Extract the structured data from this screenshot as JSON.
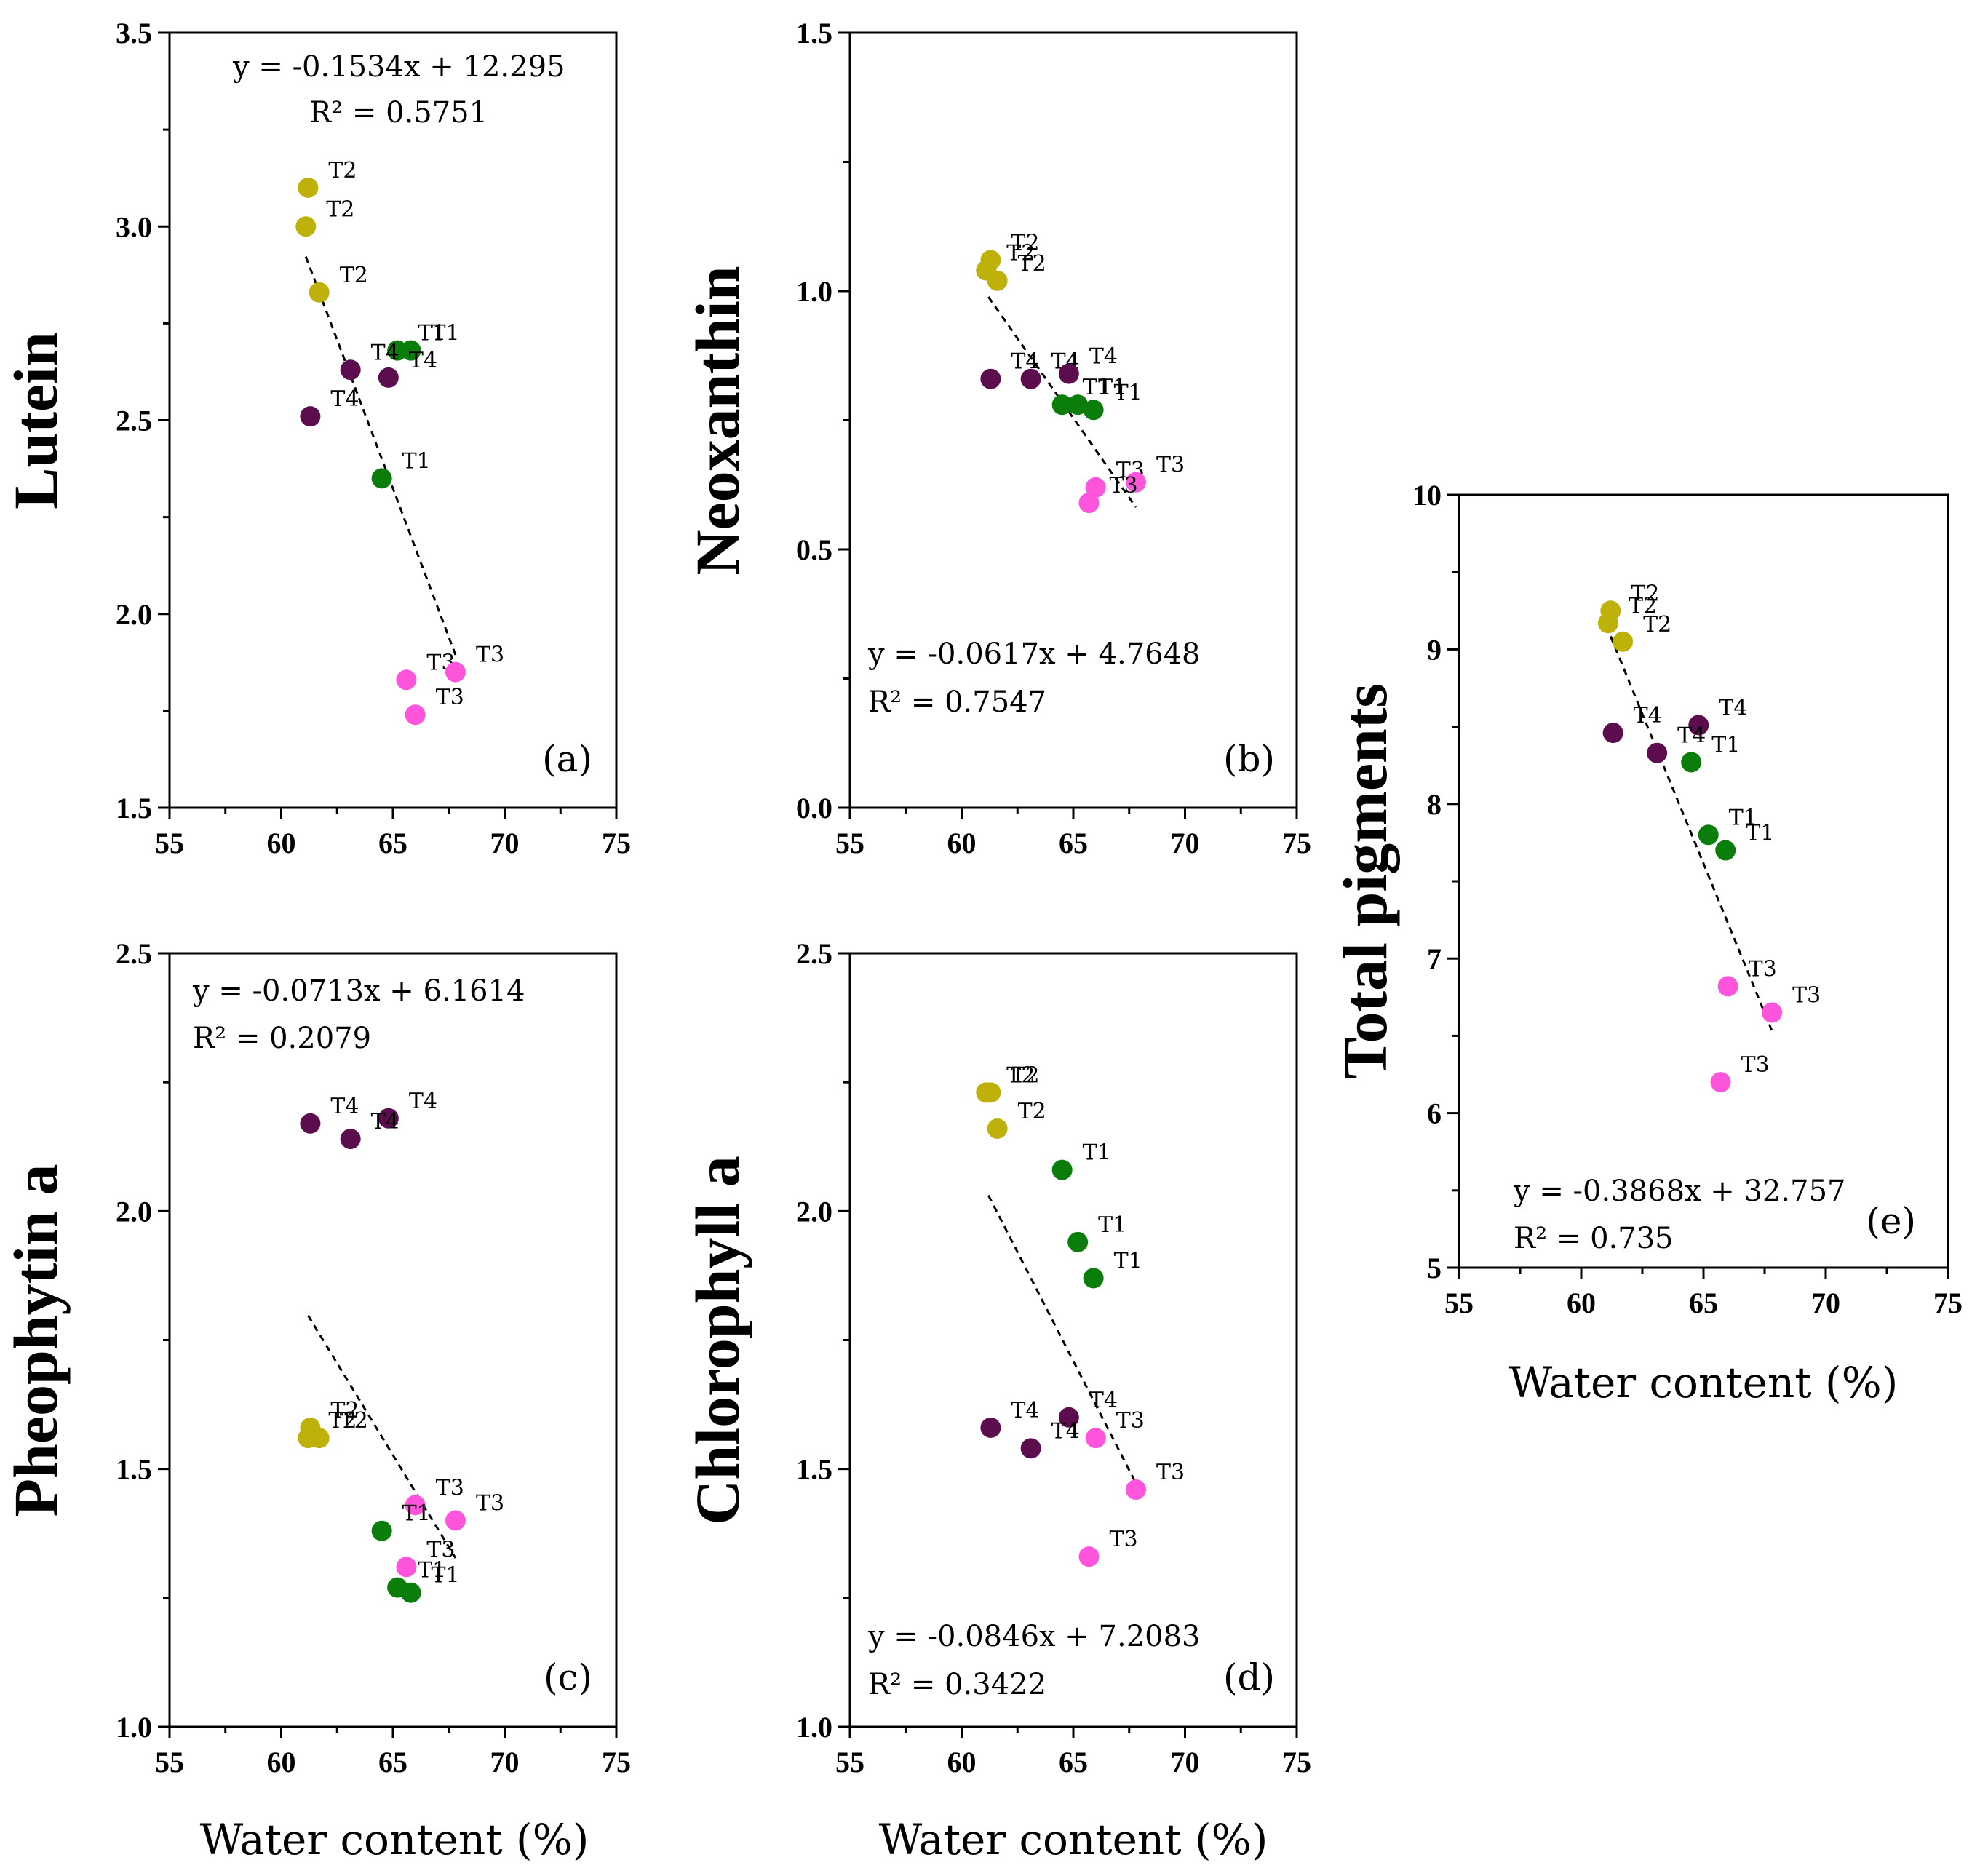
{
  "colors": {
    "T1": "#0b7d0b",
    "T2": "#bdb10a",
    "T3": "#ff55dd",
    "T4": "#5c0d4e"
  },
  "chart_data": [
    {
      "id": "a",
      "type": "scatter",
      "tag": "(a)",
      "ylabel": "Lutein",
      "xlabel": "",
      "xlim": [
        55,
        75
      ],
      "ylim": [
        1.5,
        3.5
      ],
      "xticks": [
        "55",
        "60",
        "65",
        "70",
        "75"
      ],
      "yticks": [
        "1.5",
        "2.0",
        "2.5",
        "3.0",
        "3.5"
      ],
      "ytick_values": [
        1.5,
        2.0,
        2.5,
        3.0,
        3.5
      ],
      "equation": "y = -0.1534x + 12.295",
      "r2": "R² = 0.5751",
      "fit": {
        "slope": -0.1534,
        "intercept": 12.295,
        "x_range": [
          61.1,
          67.8
        ]
      },
      "points": [
        {
          "group": "T2",
          "label": "T2",
          "x": 61.2,
          "y": 3.1
        },
        {
          "group": "T2",
          "label": "T2",
          "x": 61.1,
          "y": 3.0
        },
        {
          "group": "T2",
          "label": "T2",
          "x": 61.7,
          "y": 2.83
        },
        {
          "group": "T1",
          "label": "T1",
          "x": 65.2,
          "y": 2.68
        },
        {
          "group": "T1",
          "label": "T1",
          "x": 65.8,
          "y": 2.68
        },
        {
          "group": "T4",
          "label": "T4",
          "x": 63.1,
          "y": 2.63
        },
        {
          "group": "T4",
          "label": "T4",
          "x": 64.8,
          "y": 2.61
        },
        {
          "group": "T4",
          "label": "T4",
          "x": 61.3,
          "y": 2.51
        },
        {
          "group": "T1",
          "label": "T1",
          "x": 64.5,
          "y": 2.35
        },
        {
          "group": "T3",
          "label": "T3",
          "x": 65.6,
          "y": 1.83
        },
        {
          "group": "T3",
          "label": "T3",
          "x": 67.8,
          "y": 1.85
        },
        {
          "group": "T3",
          "label": "T3",
          "x": 66.0,
          "y": 1.74
        }
      ]
    },
    {
      "id": "b",
      "type": "scatter",
      "tag": "(b)",
      "ylabel": "Neoxanthin",
      "xlabel": "",
      "xlim": [
        55,
        75
      ],
      "ylim": [
        0.0,
        1.5
      ],
      "xticks": [
        "55",
        "60",
        "65",
        "70",
        "75"
      ],
      "yticks": [
        "0.0",
        "0.5",
        "1.0",
        "1.5"
      ],
      "ytick_values": [
        0.0,
        0.5,
        1.0,
        1.5
      ],
      "equation": "y = -0.0617x + 4.7648",
      "r2": "R² = 0.7547",
      "fit": {
        "slope": -0.0617,
        "intercept": 4.7648,
        "x_range": [
          61.2,
          67.8
        ]
      },
      "points": [
        {
          "group": "T2",
          "label": "T2",
          "x": 61.3,
          "y": 1.06
        },
        {
          "group": "T2",
          "label": "T2",
          "x": 61.1,
          "y": 1.04
        },
        {
          "group": "T2",
          "label": "T2",
          "x": 61.6,
          "y": 1.02
        },
        {
          "group": "T4",
          "label": "T4",
          "x": 61.3,
          "y": 0.83
        },
        {
          "group": "T4",
          "label": "T4",
          "x": 63.1,
          "y": 0.83
        },
        {
          "group": "T4",
          "label": "T4",
          "x": 64.8,
          "y": 0.84
        },
        {
          "group": "T1",
          "label": "T1",
          "x": 64.5,
          "y": 0.78
        },
        {
          "group": "T1",
          "label": "T1",
          "x": 65.2,
          "y": 0.78
        },
        {
          "group": "T1",
          "label": "T1",
          "x": 65.9,
          "y": 0.77
        },
        {
          "group": "T3",
          "label": "T3",
          "x": 66.0,
          "y": 0.62
        },
        {
          "group": "T3",
          "label": "T3",
          "x": 67.8,
          "y": 0.63
        },
        {
          "group": "T3",
          "label": "T3",
          "x": 65.7,
          "y": 0.59
        }
      ]
    },
    {
      "id": "c",
      "type": "scatter",
      "tag": "(c)",
      "ylabel": "Pheophytin a",
      "xlabel": "Water content (%)",
      "xlim": [
        55,
        75
      ],
      "ylim": [
        1.0,
        2.5
      ],
      "xticks": [
        "55",
        "60",
        "65",
        "70",
        "75"
      ],
      "yticks": [
        "1.0",
        "1.5",
        "2.0",
        "2.5"
      ],
      "ytick_values": [
        1.0,
        1.5,
        2.0,
        2.5
      ],
      "equation": "y =  -0.0713x + 6.1614",
      "r2": "R² = 0.2079",
      "fit": {
        "slope": -0.0713,
        "intercept": 6.1614,
        "x_range": [
          61.2,
          67.8
        ]
      },
      "points": [
        {
          "group": "T4",
          "label": "T4",
          "x": 61.3,
          "y": 2.17
        },
        {
          "group": "T4",
          "label": "T4",
          "x": 64.8,
          "y": 2.18
        },
        {
          "group": "T4",
          "label": "T4",
          "x": 63.1,
          "y": 2.14
        },
        {
          "group": "T2",
          "label": "T2",
          "x": 61.3,
          "y": 1.58
        },
        {
          "group": "T2",
          "label": "T2",
          "x": 61.2,
          "y": 1.56
        },
        {
          "group": "T2",
          "label": "T2",
          "x": 61.7,
          "y": 1.56
        },
        {
          "group": "T3",
          "label": "T3",
          "x": 66.0,
          "y": 1.43
        },
        {
          "group": "T3",
          "label": "T3",
          "x": 67.8,
          "y": 1.4
        },
        {
          "group": "T3",
          "label": "T3",
          "x": 65.6,
          "y": 1.31
        },
        {
          "group": "T1",
          "label": "T1",
          "x": 64.5,
          "y": 1.38
        },
        {
          "group": "T1",
          "label": "T1",
          "x": 65.2,
          "y": 1.27
        },
        {
          "group": "T1",
          "label": "T1",
          "x": 65.8,
          "y": 1.26
        }
      ]
    },
    {
      "id": "d",
      "type": "scatter",
      "tag": "(d)",
      "ylabel": "Chlorophyll a",
      "xlabel": "Water content (%)",
      "xlim": [
        55,
        75
      ],
      "ylim": [
        1.0,
        2.5
      ],
      "xticks": [
        "55",
        "60",
        "65",
        "70",
        "75"
      ],
      "yticks": [
        "1.0",
        "1.5",
        "2.0",
        "2.5"
      ],
      "ytick_values": [
        1.0,
        1.5,
        2.0,
        2.5
      ],
      "equation": "y = -0.0846x + 7.2083",
      "r2": "R² = 0.3422",
      "fit": {
        "slope": -0.0846,
        "intercept": 7.2083,
        "x_range": [
          61.2,
          67.8
        ]
      },
      "points": [
        {
          "group": "T2",
          "label": "T2",
          "x": 61.1,
          "y": 2.23
        },
        {
          "group": "T2",
          "label": "T2",
          "x": 61.3,
          "y": 2.23
        },
        {
          "group": "T2",
          "label": "T2",
          "x": 61.6,
          "y": 2.16
        },
        {
          "group": "T1",
          "label": "T1",
          "x": 64.5,
          "y": 2.08
        },
        {
          "group": "T1",
          "label": "T1",
          "x": 65.2,
          "y": 1.94
        },
        {
          "group": "T1",
          "label": "T1",
          "x": 65.9,
          "y": 1.87
        },
        {
          "group": "T4",
          "label": "T4",
          "x": 61.3,
          "y": 1.58
        },
        {
          "group": "T4",
          "label": "T4",
          "x": 64.8,
          "y": 1.6
        },
        {
          "group": "T4",
          "label": "T4",
          "x": 63.1,
          "y": 1.54
        },
        {
          "group": "T3",
          "label": "T3",
          "x": 66.0,
          "y": 1.56
        },
        {
          "group": "T3",
          "label": "T3",
          "x": 67.8,
          "y": 1.46
        },
        {
          "group": "T3",
          "label": "T3",
          "x": 65.7,
          "y": 1.33
        }
      ]
    },
    {
      "id": "e",
      "type": "scatter",
      "tag": "(e)",
      "ylabel": "Total pigments",
      "xlabel": "Water content (%)",
      "xlim": [
        55,
        75
      ],
      "ylim": [
        5,
        10
      ],
      "xticks": [
        "55",
        "60",
        "65",
        "70",
        "75"
      ],
      "yticks": [
        "5",
        "6",
        "7",
        "8",
        "9",
        "10"
      ],
      "ytick_values": [
        5,
        6,
        7,
        8,
        9,
        10
      ],
      "equation": "y = -0.3868x + 32.757",
      "r2": "R² = 0.735",
      "fit": {
        "slope": -0.3868,
        "intercept": 32.757,
        "x_range": [
          61.2,
          67.8
        ]
      },
      "points": [
        {
          "group": "T2",
          "label": "T2",
          "x": 61.2,
          "y": 9.25
        },
        {
          "group": "T2",
          "label": "T2",
          "x": 61.1,
          "y": 9.17
        },
        {
          "group": "T2",
          "label": "T2",
          "x": 61.7,
          "y": 9.05
        },
        {
          "group": "T4",
          "label": "T4",
          "x": 64.8,
          "y": 8.51
        },
        {
          "group": "T4",
          "label": "T4",
          "x": 61.3,
          "y": 8.46
        },
        {
          "group": "T4",
          "label": "T4",
          "x": 63.1,
          "y": 8.33
        },
        {
          "group": "T1",
          "label": "T1",
          "x": 64.5,
          "y": 8.27
        },
        {
          "group": "T1",
          "label": "T1",
          "x": 65.2,
          "y": 7.8
        },
        {
          "group": "T1",
          "label": "T1",
          "x": 65.9,
          "y": 7.7
        },
        {
          "group": "T3",
          "label": "T3",
          "x": 66.0,
          "y": 6.82
        },
        {
          "group": "T3",
          "label": "T3",
          "x": 67.8,
          "y": 6.65
        },
        {
          "group": "T3",
          "label": "T3",
          "x": 65.7,
          "y": 6.2
        }
      ]
    }
  ]
}
